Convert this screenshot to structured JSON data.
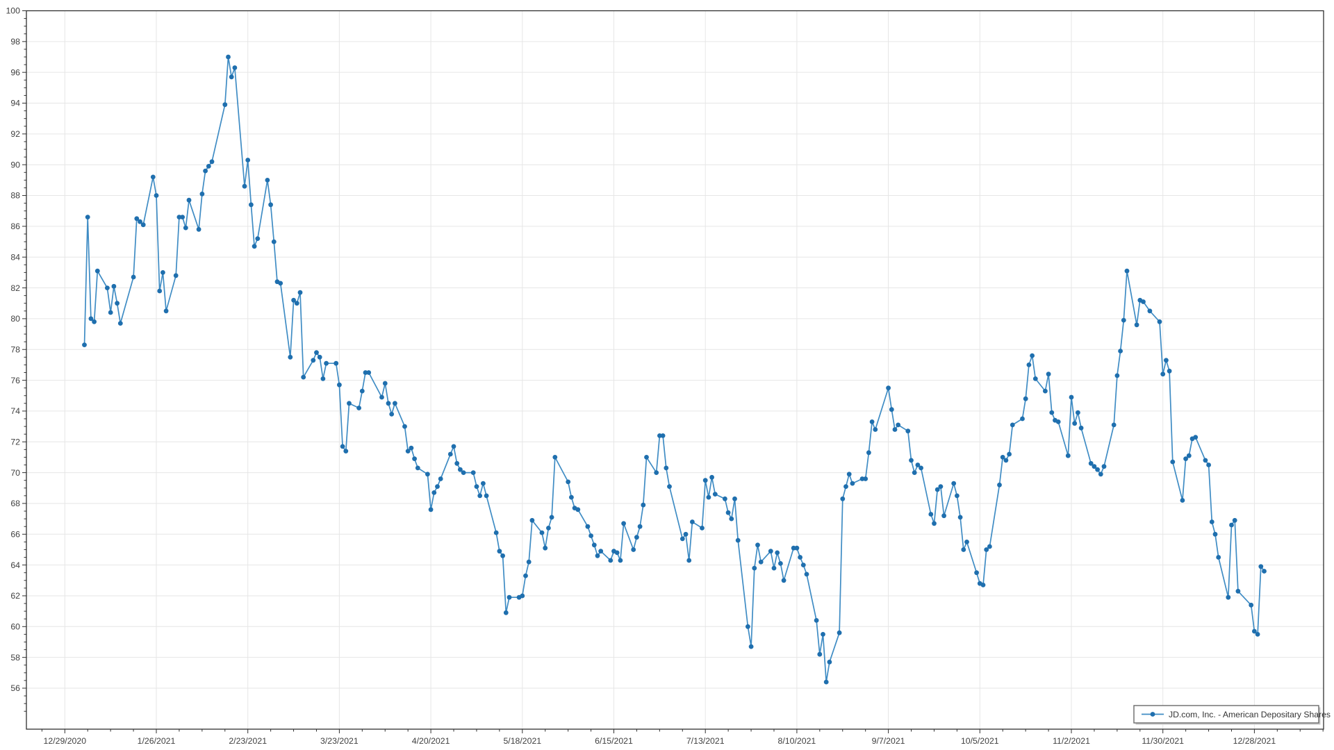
{
  "chart_data": {
    "type": "line",
    "title": "",
    "xlabel": "",
    "ylabel": "",
    "grid": true,
    "legend_position": "bottom-right",
    "x_axis_epoch": "12/29/2020",
    "x_tick_labels": [
      "12/29/2020",
      "1/26/2021",
      "2/23/2021",
      "3/23/2021",
      "4/20/2021",
      "5/18/2021",
      "6/15/2021",
      "7/13/2021",
      "8/10/2021",
      "9/7/2021",
      "10/5/2021",
      "11/2/2021",
      "11/30/2021",
      "12/28/2021"
    ],
    "y_ticks": [
      56,
      58,
      60,
      62,
      64,
      66,
      68,
      70,
      72,
      74,
      76,
      78,
      80,
      82,
      84,
      86,
      88,
      90,
      92,
      94,
      96,
      98,
      100
    ],
    "ylim": [
      53.3,
      100
    ],
    "series": [
      {
        "name": "JD.com, Inc. - American Depositary Shares",
        "line_color": "#3f8cc4",
        "marker_color": "#1f6fae",
        "dates": [
          "1/4/2021",
          "1/5/2021",
          "1/6/2021",
          "1/7/2021",
          "1/8/2021",
          "1/11/2021",
          "1/12/2021",
          "1/13/2021",
          "1/14/2021",
          "1/15/2021",
          "1/19/2021",
          "1/20/2021",
          "1/21/2021",
          "1/22/2021",
          "1/25/2021",
          "1/26/2021",
          "1/27/2021",
          "1/28/2021",
          "1/29/2021",
          "2/1/2021",
          "2/2/2021",
          "2/3/2021",
          "2/4/2021",
          "2/5/2021",
          "2/8/2021",
          "2/9/2021",
          "2/10/2021",
          "2/11/2021",
          "2/12/2021",
          "2/16/2021",
          "2/17/2021",
          "2/18/2021",
          "2/19/2021",
          "2/22/2021",
          "2/23/2021",
          "2/24/2021",
          "2/25/2021",
          "2/26/2021",
          "3/1/2021",
          "3/2/2021",
          "3/3/2021",
          "3/4/2021",
          "3/5/2021",
          "3/8/2021",
          "3/9/2021",
          "3/10/2021",
          "3/11/2021",
          "3/12/2021",
          "3/15/2021",
          "3/16/2021",
          "3/17/2021",
          "3/18/2021",
          "3/19/2021",
          "3/22/2021",
          "3/23/2021",
          "3/24/2021",
          "3/25/2021",
          "3/26/2021",
          "3/29/2021",
          "3/30/2021",
          "3/31/2021",
          "4/1/2021",
          "4/5/2021",
          "4/6/2021",
          "4/7/2021",
          "4/8/2021",
          "4/9/2021",
          "4/12/2021",
          "4/13/2021",
          "4/14/2021",
          "4/15/2021",
          "4/16/2021",
          "4/19/2021",
          "4/20/2021",
          "4/21/2021",
          "4/22/2021",
          "4/23/2021",
          "4/26/2021",
          "4/27/2021",
          "4/28/2021",
          "4/29/2021",
          "4/30/2021",
          "5/3/2021",
          "5/4/2021",
          "5/5/2021",
          "5/6/2021",
          "5/7/2021",
          "5/10/2021",
          "5/11/2021",
          "5/12/2021",
          "5/13/2021",
          "5/14/2021",
          "5/17/2021",
          "5/18/2021",
          "5/19/2021",
          "5/20/2021",
          "5/21/2021",
          "5/24/2021",
          "5/25/2021",
          "5/26/2021",
          "5/27/2021",
          "5/28/2021",
          "6/1/2021",
          "6/2/2021",
          "6/3/2021",
          "6/4/2021",
          "6/7/2021",
          "6/8/2021",
          "6/9/2021",
          "6/10/2021",
          "6/11/2021",
          "6/14/2021",
          "6/15/2021",
          "6/16/2021",
          "6/17/2021",
          "6/18/2021",
          "6/21/2021",
          "6/22/2021",
          "6/23/2021",
          "6/24/2021",
          "6/25/2021",
          "6/28/2021",
          "6/29/2021",
          "6/30/2021",
          "7/1/2021",
          "7/2/2021",
          "7/6/2021",
          "7/7/2021",
          "7/8/2021",
          "7/9/2021",
          "7/12/2021",
          "7/13/2021",
          "7/14/2021",
          "7/15/2021",
          "7/16/2021",
          "7/19/2021",
          "7/20/2021",
          "7/21/2021",
          "7/22/2021",
          "7/23/2021",
          "7/26/2021",
          "7/27/2021",
          "7/28/2021",
          "7/29/2021",
          "7/30/2021",
          "8/2/2021",
          "8/3/2021",
          "8/4/2021",
          "8/5/2021",
          "8/6/2021",
          "8/9/2021",
          "8/10/2021",
          "8/11/2021",
          "8/12/2021",
          "8/13/2021",
          "8/16/2021",
          "8/17/2021",
          "8/18/2021",
          "8/19/2021",
          "8/20/2021",
          "8/23/2021",
          "8/24/2021",
          "8/25/2021",
          "8/26/2021",
          "8/27/2021",
          "8/30/2021",
          "8/31/2021",
          "9/1/2021",
          "9/2/2021",
          "9/3/2021",
          "9/7/2021",
          "9/8/2021",
          "9/9/2021",
          "9/10/2021",
          "9/13/2021",
          "9/14/2021",
          "9/15/2021",
          "9/16/2021",
          "9/17/2021",
          "9/20/2021",
          "9/21/2021",
          "9/22/2021",
          "9/23/2021",
          "9/24/2021",
          "9/27/2021",
          "9/28/2021",
          "9/29/2021",
          "9/30/2021",
          "10/1/2021",
          "10/4/2021",
          "10/5/2021",
          "10/6/2021",
          "10/7/2021",
          "10/8/2021",
          "10/11/2021",
          "10/12/2021",
          "10/13/2021",
          "10/14/2021",
          "10/15/2021",
          "10/18/2021",
          "10/19/2021",
          "10/20/2021",
          "10/21/2021",
          "10/22/2021",
          "10/25/2021",
          "10/26/2021",
          "10/27/2021",
          "10/28/2021",
          "10/29/2021",
          "11/1/2021",
          "11/2/2021",
          "11/3/2021",
          "11/4/2021",
          "11/5/2021",
          "11/8/2021",
          "11/9/2021",
          "11/10/2021",
          "11/11/2021",
          "11/12/2021",
          "11/15/2021",
          "11/16/2021",
          "11/17/2021",
          "11/18/2021",
          "11/19/2021",
          "11/22/2021",
          "11/23/2021",
          "11/24/2021",
          "11/26/2021",
          "11/29/2021",
          "11/30/2021",
          "12/1/2021",
          "12/2/2021",
          "12/3/2021",
          "12/6/2021",
          "12/7/2021",
          "12/8/2021",
          "12/9/2021",
          "12/10/2021",
          "12/13/2021",
          "12/14/2021",
          "12/15/2021",
          "12/16/2021",
          "12/17/2021",
          "12/20/2021",
          "12/21/2021",
          "12/22/2021",
          "12/23/2021",
          "12/27/2021",
          "12/28/2021",
          "12/29/2021",
          "12/30/2021",
          "12/31/2021"
        ],
        "values": [
          78.3,
          86.6,
          80.0,
          79.8,
          83.1,
          82.0,
          80.4,
          82.1,
          81.0,
          79.7,
          82.7,
          86.5,
          86.3,
          86.1,
          89.2,
          88.0,
          81.8,
          83.0,
          80.5,
          82.8,
          86.6,
          86.6,
          85.9,
          87.7,
          85.8,
          88.1,
          89.6,
          89.9,
          90.2,
          93.9,
          97.0,
          95.7,
          96.3,
          88.6,
          90.3,
          87.4,
          84.7,
          85.2,
          89.0,
          87.4,
          85.0,
          82.4,
          82.3,
          77.5,
          81.2,
          81.0,
          81.7,
          76.2,
          77.3,
          77.8,
          77.5,
          76.1,
          77.1,
          77.1,
          75.7,
          71.7,
          71.4,
          74.5,
          74.2,
          75.3,
          76.5,
          76.5,
          74.9,
          75.8,
          74.5,
          73.8,
          74.5,
          73.0,
          71.4,
          71.6,
          70.9,
          70.3,
          69.9,
          67.6,
          68.7,
          69.1,
          69.6,
          71.2,
          71.7,
          70.6,
          70.2,
          70.0,
          70.0,
          69.1,
          68.5,
          69.3,
          68.5,
          66.1,
          64.9,
          64.6,
          60.9,
          61.9,
          61.9,
          62.0,
          63.3,
          64.2,
          66.9,
          66.1,
          65.1,
          66.4,
          67.1,
          71.0,
          69.4,
          68.4,
          67.7,
          67.6,
          66.5,
          65.9,
          65.3,
          64.6,
          64.9,
          64.3,
          64.9,
          64.8,
          64.3,
          66.7,
          65.0,
          65.8,
          66.5,
          67.9,
          71.0,
          70.0,
          72.4,
          72.4,
          70.3,
          69.1,
          65.7,
          66.0,
          64.3,
          66.8,
          66.4,
          69.5,
          68.4,
          69.7,
          68.6,
          68.3,
          67.4,
          67.0,
          68.3,
          65.6,
          60.0,
          58.7,
          63.8,
          65.3,
          64.2,
          64.9,
          63.8,
          64.8,
          64.1,
          63.0,
          65.1,
          65.1,
          64.5,
          64.0,
          63.4,
          60.4,
          58.2,
          59.5,
          56.4,
          57.7,
          59.6,
          68.3,
          69.1,
          69.9,
          69.3,
          69.6,
          69.6,
          71.3,
          73.3,
          72.8,
          75.5,
          74.1,
          72.8,
          73.1,
          72.7,
          70.8,
          70.0,
          70.5,
          70.3,
          67.3,
          66.7,
          68.9,
          69.1,
          67.2,
          69.3,
          68.5,
          67.1,
          65.0,
          65.5,
          63.5,
          62.8,
          62.7,
          65.0,
          65.2,
          69.2,
          71.0,
          70.8,
          71.2,
          73.1,
          73.5,
          74.8,
          77.0,
          77.6,
          76.1,
          75.3,
          76.4,
          73.9,
          73.4,
          73.3,
          71.1,
          74.9,
          73.2,
          73.9,
          72.9,
          70.6,
          70.4,
          70.2,
          69.9,
          70.4,
          73.1,
          76.3,
          77.9,
          79.9,
          83.1,
          79.6,
          81.2,
          81.1,
          80.5,
          79.8,
          76.4,
          77.3,
          76.6,
          70.7,
          68.2,
          70.9,
          71.1,
          72.2,
          72.3,
          70.8,
          70.5,
          66.8,
          66.0,
          64.5,
          61.9,
          66.6,
          66.9,
          62.3,
          61.4,
          59.7,
          59.5,
          63.9,
          63.6
        ]
      }
    ]
  },
  "legend": {
    "label": "JD.com, Inc. - American Depositary Shares"
  },
  "colors": {
    "background": "#ffffff",
    "grid": "#e6e6e6",
    "axis": "#2f2f2f",
    "tick_label": "#3f3f3f",
    "legend_border": "#6a6a6a",
    "legend_shadow": "#c9c9c9",
    "legend_text": "#333333"
  }
}
